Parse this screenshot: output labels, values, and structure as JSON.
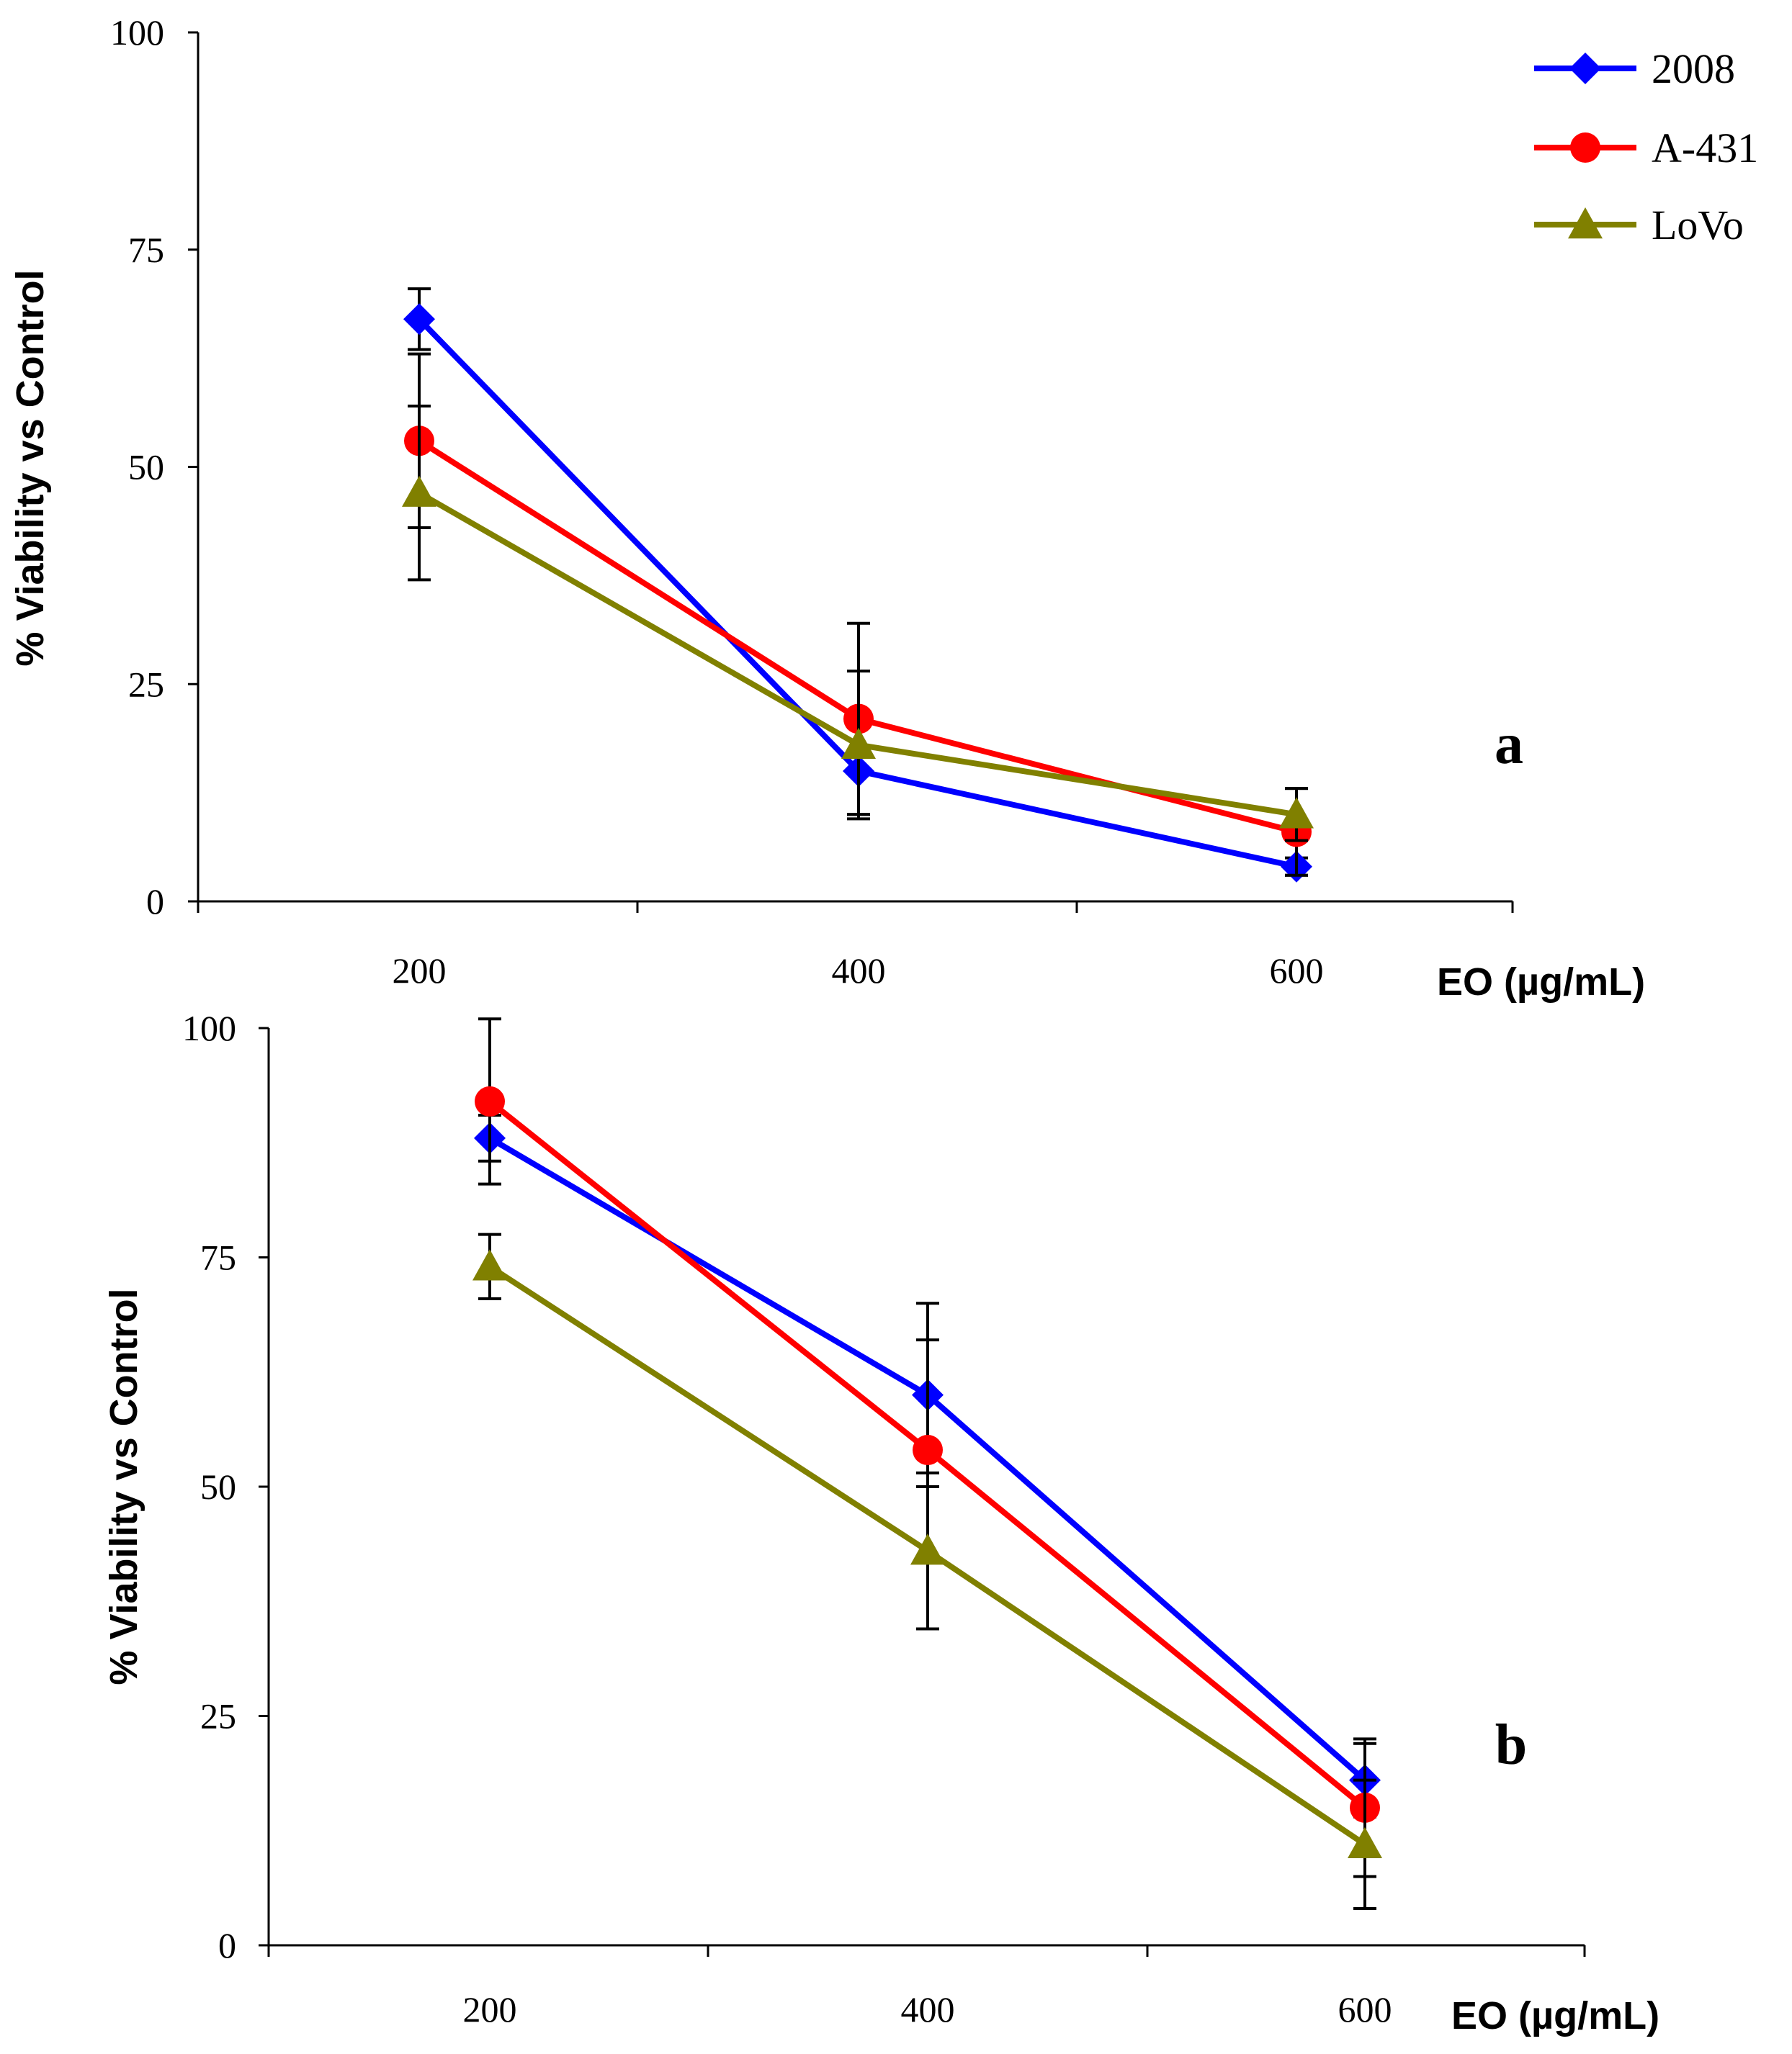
{
  "chart_data": [
    {
      "type": "line",
      "panel_label": "a",
      "xlabel": "EO (µg/mL)",
      "ylabel": "% Viability vs Control",
      "categories": [
        "200",
        "400",
        "600"
      ],
      "ylim": [
        0,
        100
      ],
      "yticks": [
        "0",
        "25",
        "50",
        "75",
        "100"
      ],
      "grid": false,
      "legend": "top-right",
      "series": [
        {
          "name": "2008",
          "color": "#0000FF",
          "marker": "diamond",
          "values": [
            67,
            15,
            4
          ],
          "errors": [
            3.5,
            5.0,
            1.0
          ]
        },
        {
          "name": "A-431",
          "color": "#FF0000",
          "marker": "circle",
          "values": [
            53,
            21,
            8
          ],
          "errors": [
            10,
            11,
            5
          ]
        },
        {
          "name": "LoVo",
          "color": "#808000",
          "marker": "triangle",
          "values": [
            47,
            18,
            10
          ],
          "errors": [
            10,
            8.5,
            3
          ]
        }
      ]
    },
    {
      "type": "line",
      "panel_label": "b",
      "xlabel": "EO (µg/mL)",
      "ylabel": "% Viability vs Control",
      "categories": [
        "200",
        "400",
        "600"
      ],
      "ylim": [
        0,
        100
      ],
      "yticks": [
        "0",
        "25",
        "50",
        "75",
        "100"
      ],
      "grid": false,
      "legend": "",
      "series": [
        {
          "name": "2008",
          "color": "#0000FF",
          "marker": "diamond",
          "values": [
            88,
            60,
            18
          ],
          "errors": [
            2.5,
            10,
            4
          ]
        },
        {
          "name": "A-431",
          "color": "#FF0000",
          "marker": "circle",
          "values": [
            92,
            54,
            15
          ],
          "errors": [
            9,
            12,
            7.5
          ]
        },
        {
          "name": "LoVo",
          "color": "#808000",
          "marker": "triangle",
          "values": [
            74,
            43,
            11
          ],
          "errors": [
            3.5,
            8.5,
            7
          ]
        }
      ]
    }
  ]
}
